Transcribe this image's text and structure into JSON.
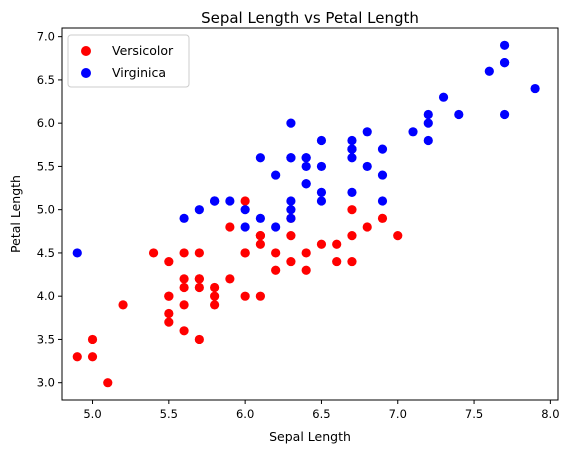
{
  "chart_data": {
    "type": "scatter",
    "title": "Sepal Length vs Petal Length",
    "xlabel": "Sepal Length",
    "ylabel": "Petal Length",
    "xlim": [
      4.8,
      8.05
    ],
    "ylim": [
      2.8,
      7.1
    ],
    "xticks": [
      "5.0",
      "5.5",
      "6.0",
      "6.5",
      "7.0",
      "7.5",
      "8.0"
    ],
    "yticks": [
      "3.0",
      "3.5",
      "4.0",
      "4.5",
      "5.0",
      "5.5",
      "6.0",
      "6.5",
      "7.0"
    ],
    "grid": false,
    "legend_position": "top-left",
    "series": [
      {
        "name": "Versicolor",
        "color": "#ff0000",
        "points": [
          [
            7.0,
            4.7
          ],
          [
            6.4,
            4.5
          ],
          [
            6.9,
            4.9
          ],
          [
            5.5,
            4.0
          ],
          [
            6.5,
            4.6
          ],
          [
            5.7,
            4.5
          ],
          [
            6.3,
            4.7
          ],
          [
            4.9,
            3.3
          ],
          [
            6.6,
            4.6
          ],
          [
            5.2,
            3.9
          ],
          [
            5.0,
            3.5
          ],
          [
            5.9,
            4.2
          ],
          [
            6.0,
            4.0
          ],
          [
            6.1,
            4.7
          ],
          [
            5.6,
            3.6
          ],
          [
            6.7,
            4.4
          ],
          [
            5.6,
            4.5
          ],
          [
            5.8,
            4.1
          ],
          [
            6.2,
            4.5
          ],
          [
            5.6,
            3.9
          ],
          [
            5.9,
            4.8
          ],
          [
            6.1,
            4.0
          ],
          [
            6.3,
            4.9
          ],
          [
            6.1,
            4.7
          ],
          [
            6.4,
            4.3
          ],
          [
            6.6,
            4.4
          ],
          [
            6.8,
            4.8
          ],
          [
            6.7,
            5.0
          ],
          [
            6.0,
            4.5
          ],
          [
            5.7,
            3.5
          ],
          [
            5.5,
            3.8
          ],
          [
            5.5,
            3.7
          ],
          [
            5.8,
            3.9
          ],
          [
            6.0,
            5.1
          ],
          [
            5.4,
            4.5
          ],
          [
            6.0,
            4.5
          ],
          [
            6.7,
            4.7
          ],
          [
            6.3,
            4.4
          ],
          [
            5.6,
            4.1
          ],
          [
            5.5,
            4.0
          ],
          [
            5.5,
            4.4
          ],
          [
            6.1,
            4.6
          ],
          [
            5.8,
            4.0
          ],
          [
            5.0,
            3.3
          ],
          [
            5.6,
            4.2
          ],
          [
            5.7,
            4.2
          ],
          [
            5.7,
            4.2
          ],
          [
            6.2,
            4.3
          ],
          [
            5.1,
            3.0
          ],
          [
            5.7,
            4.1
          ]
        ]
      },
      {
        "name": "Virginica",
        "color": "#0000ff",
        "points": [
          [
            6.3,
            6.0
          ],
          [
            5.8,
            5.1
          ],
          [
            7.1,
            5.9
          ],
          [
            6.3,
            5.6
          ],
          [
            6.5,
            5.8
          ],
          [
            7.6,
            6.6
          ],
          [
            4.9,
            4.5
          ],
          [
            7.3,
            6.3
          ],
          [
            6.7,
            5.8
          ],
          [
            7.2,
            6.1
          ],
          [
            6.5,
            5.1
          ],
          [
            6.4,
            5.3
          ],
          [
            6.8,
            5.5
          ],
          [
            5.7,
            5.0
          ],
          [
            5.8,
            5.1
          ],
          [
            6.4,
            5.3
          ],
          [
            6.5,
            5.5
          ],
          [
            7.7,
            6.7
          ],
          [
            7.7,
            6.9
          ],
          [
            6.0,
            5.0
          ],
          [
            6.9,
            5.7
          ],
          [
            5.6,
            4.9
          ],
          [
            7.7,
            6.7
          ],
          [
            6.3,
            4.9
          ],
          [
            6.7,
            5.7
          ],
          [
            7.2,
            6.0
          ],
          [
            6.2,
            4.8
          ],
          [
            6.1,
            4.9
          ],
          [
            6.4,
            5.6
          ],
          [
            7.2,
            5.8
          ],
          [
            7.4,
            6.1
          ],
          [
            7.9,
            6.4
          ],
          [
            6.4,
            5.6
          ],
          [
            6.3,
            5.1
          ],
          [
            6.1,
            5.6
          ],
          [
            7.7,
            6.1
          ],
          [
            6.3,
            5.6
          ],
          [
            6.4,
            5.5
          ],
          [
            6.0,
            4.8
          ],
          [
            6.9,
            5.4
          ],
          [
            6.7,
            5.6
          ],
          [
            6.9,
            5.1
          ],
          [
            5.8,
            5.1
          ],
          [
            6.8,
            5.9
          ],
          [
            6.7,
            5.7
          ],
          [
            6.7,
            5.2
          ],
          [
            6.3,
            5.0
          ],
          [
            6.5,
            5.2
          ],
          [
            6.2,
            5.4
          ],
          [
            5.9,
            5.1
          ]
        ]
      }
    ]
  }
}
